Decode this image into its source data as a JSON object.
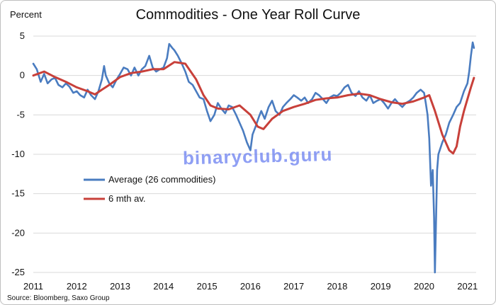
{
  "chart_data": {
    "type": "line",
    "title": "Commodities - One Year Roll Curve",
    "ylabel": "Percent",
    "xlabel": "",
    "ylim": [
      -25,
      5
    ],
    "xlim": [
      2011,
      2021.2
    ],
    "y_ticks": [
      5,
      0,
      -5,
      -10,
      -15,
      -20,
      -25
    ],
    "x_ticks": [
      2011,
      2012,
      2013,
      2014,
      2015,
      2016,
      2017,
      2018,
      2019,
      2020,
      2021
    ],
    "grid": "horizontal",
    "legend_position": "center-left",
    "series": [
      {
        "name": "Average (26 commodities)",
        "color": "#4a7cc0",
        "points": [
          [
            2011.0,
            1.5
          ],
          [
            2011.08,
            0.8
          ],
          [
            2011.17,
            -0.8
          ],
          [
            2011.25,
            0.2
          ],
          [
            2011.33,
            -1.0
          ],
          [
            2011.42,
            -0.5
          ],
          [
            2011.5,
            -0.3
          ],
          [
            2011.58,
            -1.2
          ],
          [
            2011.67,
            -1.5
          ],
          [
            2011.75,
            -1.0
          ],
          [
            2011.83,
            -1.4
          ],
          [
            2011.92,
            -2.2
          ],
          [
            2012.0,
            -2.0
          ],
          [
            2012.08,
            -2.5
          ],
          [
            2012.17,
            -2.8
          ],
          [
            2012.25,
            -1.8
          ],
          [
            2012.33,
            -2.5
          ],
          [
            2012.42,
            -3.0
          ],
          [
            2012.5,
            -2.0
          ],
          [
            2012.58,
            -0.5
          ],
          [
            2012.63,
            1.2
          ],
          [
            2012.67,
            0.0
          ],
          [
            2012.75,
            -1.0
          ],
          [
            2012.83,
            -1.5
          ],
          [
            2012.92,
            -0.5
          ],
          [
            2013.0,
            0.2
          ],
          [
            2013.08,
            1.0
          ],
          [
            2013.17,
            0.8
          ],
          [
            2013.25,
            0.0
          ],
          [
            2013.33,
            1.0
          ],
          [
            2013.42,
            0.0
          ],
          [
            2013.5,
            0.8
          ],
          [
            2013.58,
            1.2
          ],
          [
            2013.67,
            2.5
          ],
          [
            2013.75,
            1.0
          ],
          [
            2013.83,
            0.5
          ],
          [
            2013.92,
            0.8
          ],
          [
            2014.0,
            1.0
          ],
          [
            2014.08,
            2.2
          ],
          [
            2014.13,
            4.0
          ],
          [
            2014.2,
            3.5
          ],
          [
            2014.25,
            3.2
          ],
          [
            2014.33,
            2.5
          ],
          [
            2014.42,
            1.5
          ],
          [
            2014.5,
            0.5
          ],
          [
            2014.58,
            -0.8
          ],
          [
            2014.67,
            -1.2
          ],
          [
            2014.75,
            -2.0
          ],
          [
            2014.83,
            -2.8
          ],
          [
            2014.92,
            -3.0
          ],
          [
            2015.0,
            -4.5
          ],
          [
            2015.08,
            -5.8
          ],
          [
            2015.17,
            -5.0
          ],
          [
            2015.25,
            -3.5
          ],
          [
            2015.33,
            -4.2
          ],
          [
            2015.42,
            -4.8
          ],
          [
            2015.5,
            -3.8
          ],
          [
            2015.58,
            -4.0
          ],
          [
            2015.67,
            -5.0
          ],
          [
            2015.75,
            -6.0
          ],
          [
            2015.83,
            -7.0
          ],
          [
            2015.92,
            -8.5
          ],
          [
            2016.0,
            -9.5
          ],
          [
            2016.05,
            -7.5
          ],
          [
            2016.12,
            -6.5
          ],
          [
            2016.2,
            -5.2
          ],
          [
            2016.25,
            -4.5
          ],
          [
            2016.33,
            -5.5
          ],
          [
            2016.42,
            -4.0
          ],
          [
            2016.5,
            -3.2
          ],
          [
            2016.58,
            -4.5
          ],
          [
            2016.67,
            -5.0
          ],
          [
            2016.75,
            -4.0
          ],
          [
            2016.83,
            -3.5
          ],
          [
            2016.92,
            -3.0
          ],
          [
            2017.0,
            -2.5
          ],
          [
            2017.08,
            -2.8
          ],
          [
            2017.17,
            -3.2
          ],
          [
            2017.25,
            -2.8
          ],
          [
            2017.33,
            -3.5
          ],
          [
            2017.42,
            -3.0
          ],
          [
            2017.5,
            -2.2
          ],
          [
            2017.58,
            -2.5
          ],
          [
            2017.67,
            -3.0
          ],
          [
            2017.75,
            -3.5
          ],
          [
            2017.83,
            -2.8
          ],
          [
            2017.92,
            -2.5
          ],
          [
            2018.0,
            -2.6
          ],
          [
            2018.08,
            -2.2
          ],
          [
            2018.17,
            -1.5
          ],
          [
            2018.25,
            -1.2
          ],
          [
            2018.33,
            -2.2
          ],
          [
            2018.42,
            -2.6
          ],
          [
            2018.5,
            -2.0
          ],
          [
            2018.58,
            -2.8
          ],
          [
            2018.67,
            -3.2
          ],
          [
            2018.75,
            -2.5
          ],
          [
            2018.83,
            -3.5
          ],
          [
            2018.92,
            -3.2
          ],
          [
            2019.0,
            -3.0
          ],
          [
            2019.08,
            -3.5
          ],
          [
            2019.17,
            -4.2
          ],
          [
            2019.25,
            -3.5
          ],
          [
            2019.33,
            -3.0
          ],
          [
            2019.42,
            -3.6
          ],
          [
            2019.5,
            -4.0
          ],
          [
            2019.58,
            -3.5
          ],
          [
            2019.67,
            -3.2
          ],
          [
            2019.75,
            -2.8
          ],
          [
            2019.83,
            -2.2
          ],
          [
            2019.92,
            -1.8
          ],
          [
            2020.0,
            -2.2
          ],
          [
            2020.04,
            -3.5
          ],
          [
            2020.08,
            -5.0
          ],
          [
            2020.12,
            -8.0
          ],
          [
            2020.16,
            -14.0
          ],
          [
            2020.2,
            -12.0
          ],
          [
            2020.23,
            -18.0
          ],
          [
            2020.25,
            -25.0
          ],
          [
            2020.27,
            -20.0
          ],
          [
            2020.3,
            -12.0
          ],
          [
            2020.33,
            -10.0
          ],
          [
            2020.42,
            -8.5
          ],
          [
            2020.5,
            -7.5
          ],
          [
            2020.58,
            -6.0
          ],
          [
            2020.67,
            -5.0
          ],
          [
            2020.75,
            -4.0
          ],
          [
            2020.83,
            -3.5
          ],
          [
            2020.92,
            -2.0
          ],
          [
            2021.0,
            -1.0
          ],
          [
            2021.04,
            0.5
          ],
          [
            2021.08,
            2.5
          ],
          [
            2021.12,
            4.2
          ],
          [
            2021.15,
            3.5
          ]
        ]
      },
      {
        "name": "6 mth av.",
        "color": "#c8403a",
        "points": [
          [
            2011.0,
            0.0
          ],
          [
            2011.25,
            0.5
          ],
          [
            2011.5,
            -0.2
          ],
          [
            2011.75,
            -0.8
          ],
          [
            2012.0,
            -1.5
          ],
          [
            2012.25,
            -2.0
          ],
          [
            2012.42,
            -2.4
          ],
          [
            2012.58,
            -1.8
          ],
          [
            2012.75,
            -1.2
          ],
          [
            2013.0,
            -0.2
          ],
          [
            2013.25,
            0.3
          ],
          [
            2013.5,
            0.5
          ],
          [
            2013.75,
            0.8
          ],
          [
            2014.0,
            0.8
          ],
          [
            2014.25,
            1.7
          ],
          [
            2014.5,
            1.5
          ],
          [
            2014.75,
            -0.5
          ],
          [
            2014.92,
            -2.5
          ],
          [
            2015.08,
            -3.8
          ],
          [
            2015.25,
            -4.2
          ],
          [
            2015.5,
            -4.3
          ],
          [
            2015.75,
            -3.8
          ],
          [
            2016.0,
            -5.0
          ],
          [
            2016.17,
            -6.5
          ],
          [
            2016.3,
            -6.8
          ],
          [
            2016.5,
            -5.5
          ],
          [
            2016.75,
            -4.5
          ],
          [
            2017.0,
            -4.0
          ],
          [
            2017.25,
            -3.6
          ],
          [
            2017.5,
            -3.1
          ],
          [
            2017.75,
            -2.9
          ],
          [
            2018.0,
            -2.8
          ],
          [
            2018.25,
            -2.5
          ],
          [
            2018.5,
            -2.3
          ],
          [
            2018.75,
            -2.5
          ],
          [
            2019.0,
            -3.0
          ],
          [
            2019.25,
            -3.4
          ],
          [
            2019.5,
            -3.6
          ],
          [
            2019.75,
            -3.3
          ],
          [
            2020.0,
            -2.8
          ],
          [
            2020.12,
            -2.5
          ],
          [
            2020.25,
            -4.5
          ],
          [
            2020.42,
            -7.5
          ],
          [
            2020.58,
            -9.5
          ],
          [
            2020.67,
            -9.9
          ],
          [
            2020.75,
            -9.0
          ],
          [
            2020.83,
            -6.5
          ],
          [
            2020.92,
            -4.5
          ],
          [
            2021.0,
            -3.0
          ],
          [
            2021.08,
            -1.5
          ],
          [
            2021.15,
            -0.3
          ]
        ]
      }
    ]
  },
  "source": "Source: Bloomberg, Saxo Group",
  "watermark": "binaryclub.guru"
}
